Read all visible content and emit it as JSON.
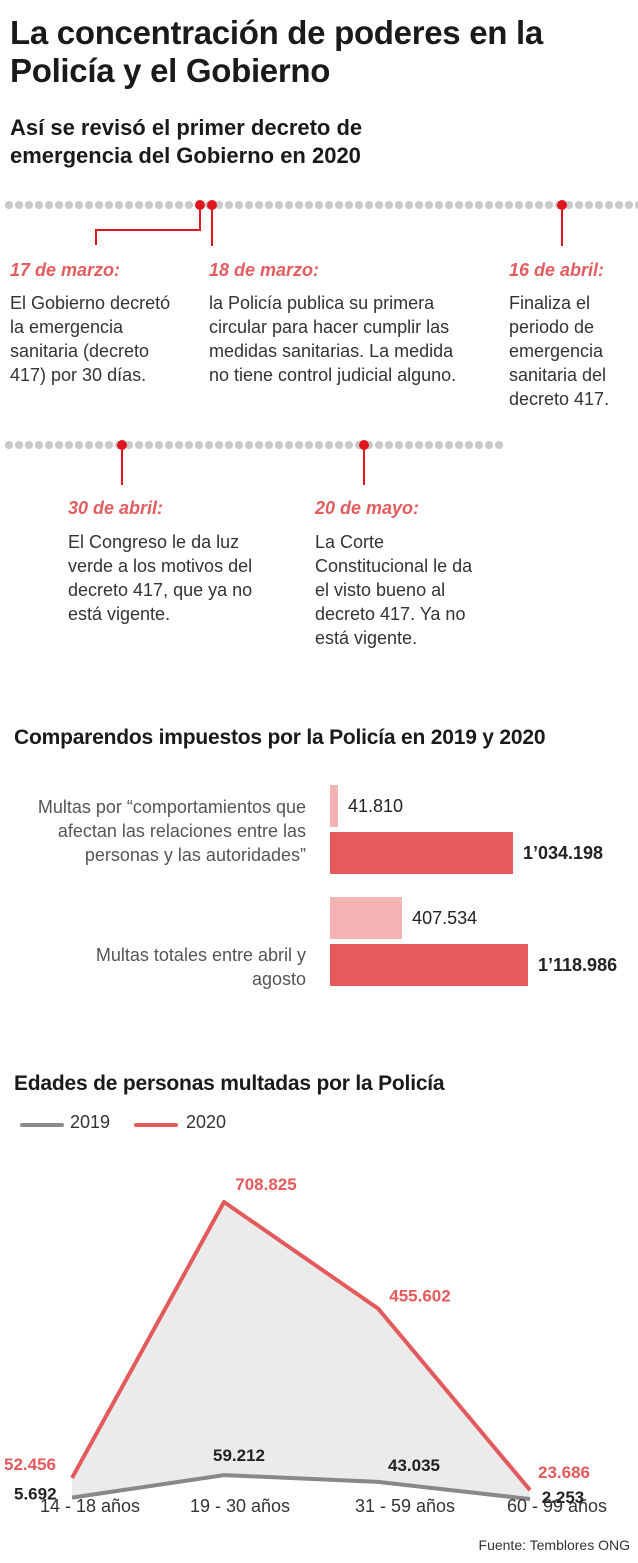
{
  "header": {
    "title": "La concentración de poderes en la Policía y el Gobierno",
    "subtitle": "Así se revisó el primer decreto de emergencia del Gobierno en 2020"
  },
  "timeline": {
    "events": [
      {
        "date": "17 de marzo:",
        "text": "El Gobierno decretó la emergencia sanitaria (decreto 417) por 30 días."
      },
      {
        "date": "18 de marzo:",
        "text": "la Policía publica su primera circular para hacer cumplir las medidas sanitarias. La medida no tiene control judicial alguno."
      },
      {
        "date": "16 de abril:",
        "text": "Finaliza el periodo de emergencia sanitaria del decreto 417."
      },
      {
        "date": "30 de abril:",
        "text": "El Congreso le da luz verde a los motivos del decreto 417, que ya no está vigente."
      },
      {
        "date": "20 de mayo:",
        "text": "La Corte Constitucional le da el visto bueno al decreto 417. Ya no está vigente."
      }
    ],
    "accent": "#e0161e",
    "date_color": "#e35d5f"
  },
  "chart_data": [
    {
      "type": "bar",
      "title": "Comparendos impuestos por la Policía en 2019 y 2020",
      "orientation": "horizontal",
      "categories": [
        "Multas por “comportamientos que afectan las relaciones entre las personas y las autoridades”",
        "Multas totales entre abril y agosto"
      ],
      "series": [
        {
          "values": [
            41810,
            407534
          ],
          "labels": [
            "41.810",
            "407.534"
          ],
          "color": "#f4b3b3"
        },
        {
          "values": [
            1034198,
            1118986
          ],
          "labels": [
            "1’034.198",
            "1’118.986"
          ],
          "color": "#e65a5d"
        }
      ]
    },
    {
      "type": "line",
      "title": "Edades de personas multadas por la Policía",
      "categories": [
        "14 - 18 años",
        "19 - 30 años",
        "31 - 59 años",
        "60 - 99 años"
      ],
      "series": [
        {
          "name": "2019",
          "values": [
            5692,
            59212,
            43035,
            2253
          ],
          "labels": [
            "5.692",
            "59.212",
            "43.035",
            "2.253"
          ],
          "color": "#888888"
        },
        {
          "name": "2020",
          "values": [
            52456,
            708825,
            455602,
            23686
          ],
          "labels": [
            "52.456",
            "708.825",
            "455.602",
            "23.686"
          ],
          "color": "#e35a5d"
        }
      ],
      "area_fill": "#ebebeb",
      "ylim": [
        0,
        708825
      ]
    }
  ],
  "footer": {
    "source": "Fuente: Temblores ONG"
  }
}
